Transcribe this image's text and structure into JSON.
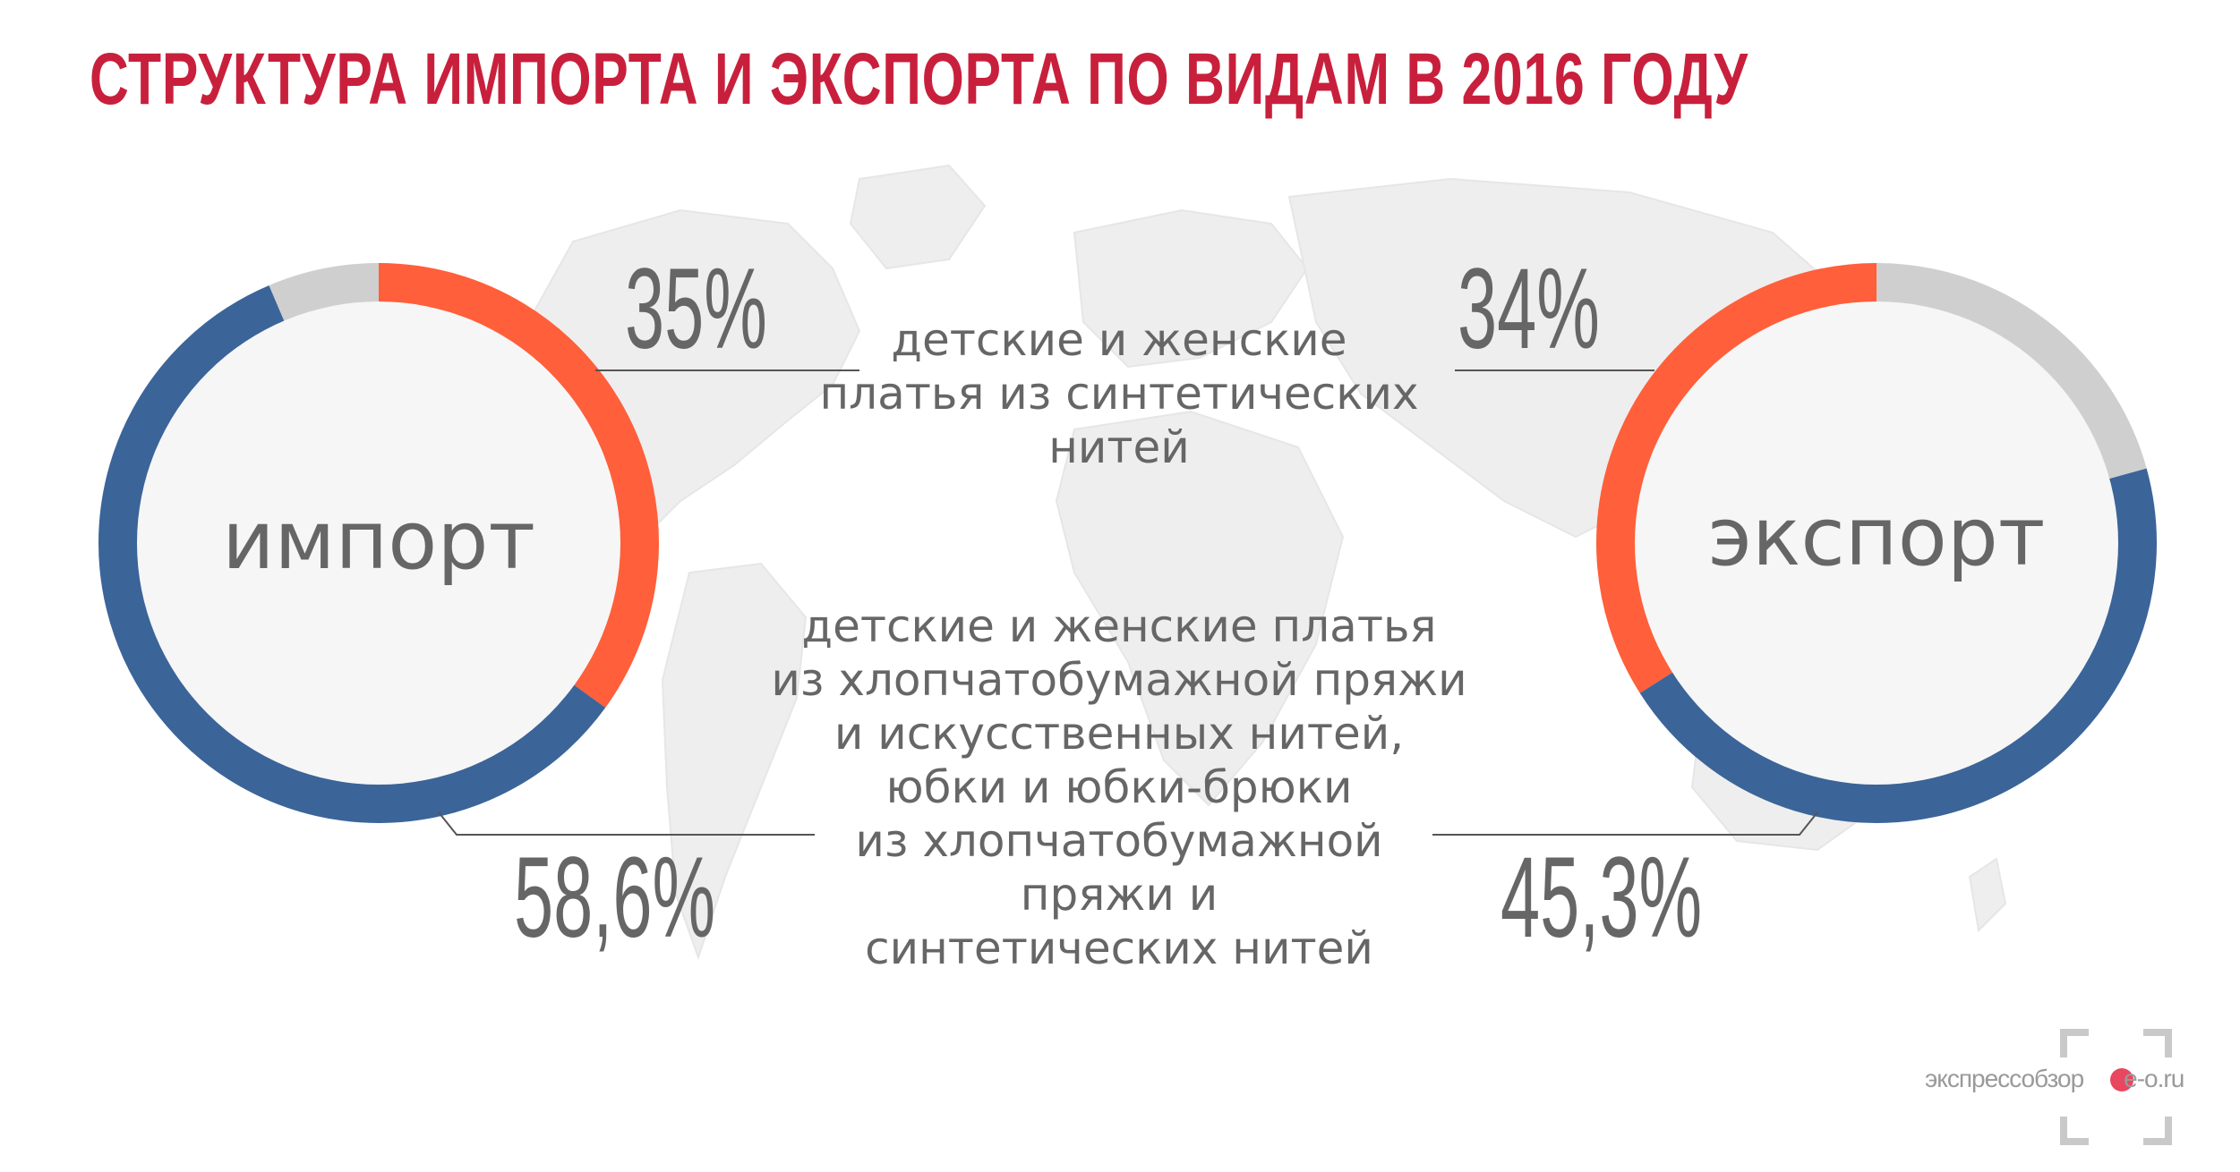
{
  "title": "СТРУКТУРА ИМПОРТА И ЭКСПОРТА ПО ВИДАМ В 2016 ГОДУ",
  "colors": {
    "title": "#c8203c",
    "synthetic": "#ff5f3a",
    "cotton": "#3b6499",
    "other": "#cfcfcf",
    "center": "#f6f6f6",
    "text": "#666666",
    "map": "#eeeeee",
    "line": "#555555"
  },
  "categories": {
    "synthetic": "детские и женские\nплатья из синтетических\nнитей",
    "cotton": "детские и женские платья\nиз хлопчатобумажной пряжи\nи искусственных нитей,\nюбки и юбки-брюки\nиз хлопчатобумажной\nпряжи и\nсинтетических нитей"
  },
  "import": {
    "label": "импорт",
    "synthetic_label": "35%",
    "cotton_label": "58,6%"
  },
  "export": {
    "label": "экспорт",
    "synthetic_label": "34%",
    "cotton_label": "45,3%"
  },
  "watermark": {
    "text": "экспрессобзор",
    "domain": "e-o.ru",
    "icon": "camera-frame-icon"
  },
  "chart_data": [
    {
      "type": "pie",
      "title": "импорт",
      "categories": [
        "детские и женские платья из синтетических нитей",
        "детские и женские платья из хлопчатобумажной пряжи и искусственных нитей, юбки и юбки-брюки из хлопчатобумажной пряжи и синтетических нитей",
        ""
      ],
      "values": [
        35,
        58.6,
        6.4
      ],
      "value_labels": [
        "35%",
        "58,6%",
        ""
      ],
      "colors": [
        "#ff5f3a",
        "#3b6499",
        "#cfcfcf"
      ],
      "donut": true,
      "start_angle_deg": 0,
      "direction": "clockwise"
    },
    {
      "type": "pie",
      "title": "экспорт",
      "categories": [
        "детские и женские платья из синтетических нитей",
        "детские и женские платья из хлопчатобумажной пряжи и искусственных нитей, юбки и юбки-брюки из хлопчатобумажной пряжи и синтетических нитей",
        ""
      ],
      "values": [
        34,
        45.3,
        20.7
      ],
      "value_labels": [
        "34%",
        "45,3%",
        ""
      ],
      "colors": [
        "#ff5f3a",
        "#3b6499",
        "#cfcfcf"
      ],
      "donut": true,
      "start_angle_deg": 0,
      "direction": "counterclockwise"
    }
  ]
}
